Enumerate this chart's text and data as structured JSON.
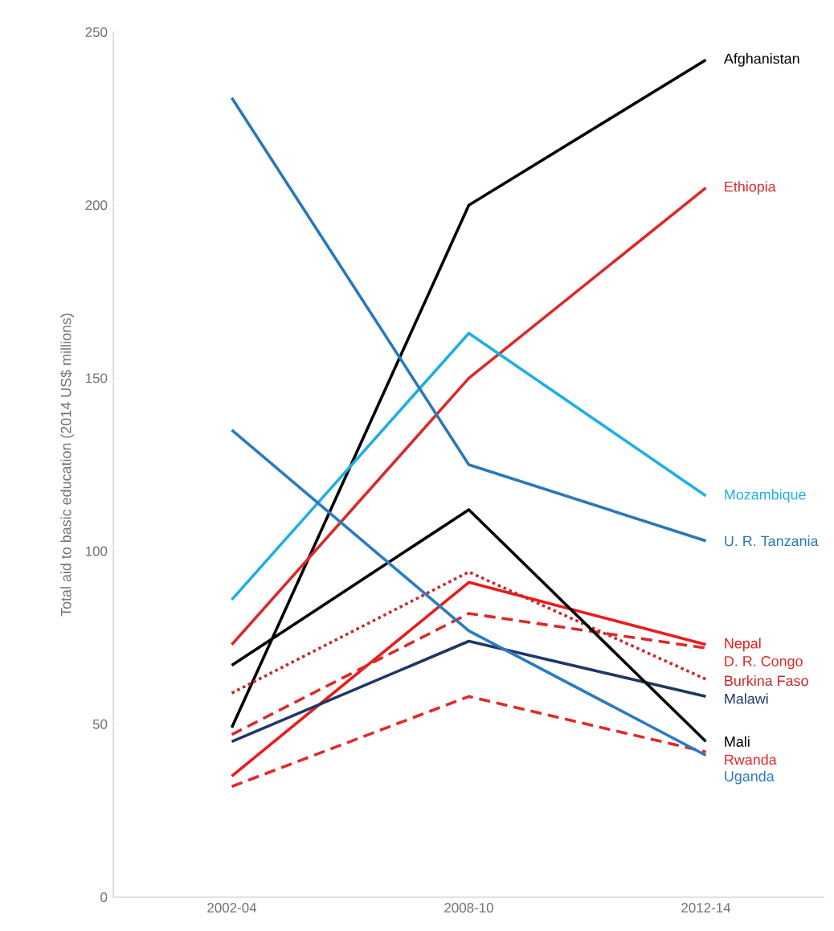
{
  "chart_data": {
    "type": "line",
    "ylabel": "Total aid to basic education (2014 US$ millions)",
    "categories": [
      "2002-04",
      "2008-10",
      "2012-14"
    ],
    "ylim": [
      0,
      250
    ],
    "yticks": [
      0,
      50,
      100,
      150,
      200,
      250
    ],
    "marker": "none",
    "grid": false,
    "legend": false,
    "line_style": "solid",
    "series": [
      {
        "name": "Afghanistan",
        "color": "#000000",
        "values": [
          49,
          200,
          242
        ]
      },
      {
        "name": "Ethiopia",
        "color": "#d92b2b",
        "values": [
          73,
          150,
          205
        ]
      },
      {
        "name": "Mozambique",
        "color": "#1eb0e2",
        "values": [
          86,
          163,
          116
        ]
      },
      {
        "name": "U. R. Tanzania",
        "color": "#2a78b8",
        "values": [
          231,
          125,
          103
        ]
      },
      {
        "name": "Nepal",
        "color": "#ea1c1c",
        "values": [
          35,
          91,
          73
        ]
      },
      {
        "name": "D. R. Congo",
        "color": "#d92b2b",
        "values": [
          47,
          82,
          72
        ],
        "line_style": "dashed"
      },
      {
        "name": "Burkina Faso",
        "color": "#c8282e",
        "values": [
          59,
          94,
          63
        ],
        "line_style": "dotted"
      },
      {
        "name": "Malawi",
        "color": "#1f3864",
        "values": [
          45,
          74,
          58
        ]
      },
      {
        "name": "Mali",
        "color": "#000000",
        "values": [
          67,
          112,
          45
        ]
      },
      {
        "name": "Rwanda",
        "color": "#e02a2a",
        "values": [
          32,
          58,
          42
        ],
        "line_style": "dashed"
      },
      {
        "name": "Uganda",
        "color": "#2a7cc0",
        "values": [
          135,
          77,
          41
        ]
      }
    ]
  }
}
